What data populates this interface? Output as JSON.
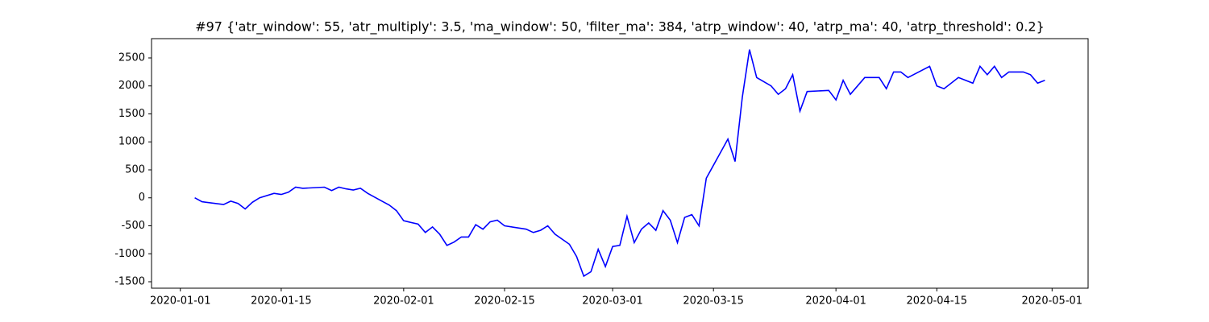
{
  "chart_data": {
    "type": "line",
    "title": "#97 {'atr_window': 55, 'atr_multiply': 3.5, 'ma_window': 50, 'filter_ma': 384, 'atrp_window': 40, 'atrp_ma': 40, 'atrp_threshold': 0.2}",
    "x": [
      "2020-01-03",
      "2020-01-04",
      "2020-01-07",
      "2020-01-08",
      "2020-01-09",
      "2020-01-10",
      "2020-01-11",
      "2020-01-12",
      "2020-01-14",
      "2020-01-15",
      "2020-01-16",
      "2020-01-17",
      "2020-01-18",
      "2020-01-21",
      "2020-01-22",
      "2020-01-23",
      "2020-01-24",
      "2020-01-25",
      "2020-01-26",
      "2020-01-27",
      "2020-01-29",
      "2020-01-30",
      "2020-01-31",
      "2020-02-01",
      "2020-02-03",
      "2020-02-04",
      "2020-02-05",
      "2020-02-06",
      "2020-02-07",
      "2020-02-08",
      "2020-02-09",
      "2020-02-10",
      "2020-02-11",
      "2020-02-12",
      "2020-02-13",
      "2020-02-14",
      "2020-02-15",
      "2020-02-18",
      "2020-02-19",
      "2020-02-20",
      "2020-02-21",
      "2020-02-22",
      "2020-02-24",
      "2020-02-25",
      "2020-02-26",
      "2020-02-27",
      "2020-02-28",
      "2020-02-29",
      "2020-03-01",
      "2020-03-02",
      "2020-03-03",
      "2020-03-04",
      "2020-03-05",
      "2020-03-06",
      "2020-03-07",
      "2020-03-08",
      "2020-03-09",
      "2020-03-10",
      "2020-03-11",
      "2020-03-12",
      "2020-03-13",
      "2020-03-14",
      "2020-03-17",
      "2020-03-18",
      "2020-03-19",
      "2020-03-20",
      "2020-03-21",
      "2020-03-23",
      "2020-03-24",
      "2020-03-25",
      "2020-03-26",
      "2020-03-27",
      "2020-03-28",
      "2020-03-31",
      "2020-04-01",
      "2020-04-02",
      "2020-04-03",
      "2020-04-04",
      "2020-04-05",
      "2020-04-07",
      "2020-04-08",
      "2020-04-09",
      "2020-04-10",
      "2020-04-11",
      "2020-04-14",
      "2020-04-15",
      "2020-04-16",
      "2020-04-17",
      "2020-04-18",
      "2020-04-20",
      "2020-04-21",
      "2020-04-22",
      "2020-04-23",
      "2020-04-24",
      "2020-04-25",
      "2020-04-27",
      "2020-04-28",
      "2020-04-29",
      "2020-04-30"
    ],
    "values": [
      0,
      -70,
      -120,
      -60,
      -100,
      -200,
      -80,
      0,
      80,
      60,
      100,
      190,
      170,
      190,
      130,
      190,
      160,
      140,
      170,
      80,
      -60,
      -130,
      -230,
      -410,
      -470,
      -620,
      -520,
      -650,
      -850,
      -790,
      -700,
      -700,
      -480,
      -560,
      -430,
      -400,
      -500,
      -560,
      -620,
      -580,
      -500,
      -650,
      -830,
      -1050,
      -1400,
      -1320,
      -920,
      -1230,
      -870,
      -850,
      -330,
      -800,
      -560,
      -450,
      -580,
      -230,
      -400,
      -800,
      -350,
      -300,
      -500,
      350,
      1050,
      650,
      1800,
      2650,
      2150,
      2000,
      1850,
      1950,
      2200,
      1550,
      1900,
      1920,
      1750,
      2100,
      1850,
      2000,
      2150,
      2150,
      1950,
      2250,
      2250,
      2150,
      2350,
      2000,
      1950,
      2050,
      2150,
      2050,
      2350,
      2200,
      2350,
      2150,
      2250,
      2250,
      2200,
      2050,
      2100
    ],
    "color": "#0000ff",
    "xlim": [
      "2019-12-28",
      "2020-05-06"
    ],
    "xticks": [
      "2020-01-01",
      "2020-01-15",
      "2020-02-01",
      "2020-02-15",
      "2020-03-01",
      "2020-03-15",
      "2020-04-01",
      "2020-04-15",
      "2020-05-01"
    ],
    "ylim": [
      -1615,
      2845
    ],
    "yticks": [
      -1500,
      -1000,
      -500,
      0,
      500,
      1000,
      1500,
      2000,
      2500
    ],
    "grid": false
  }
}
